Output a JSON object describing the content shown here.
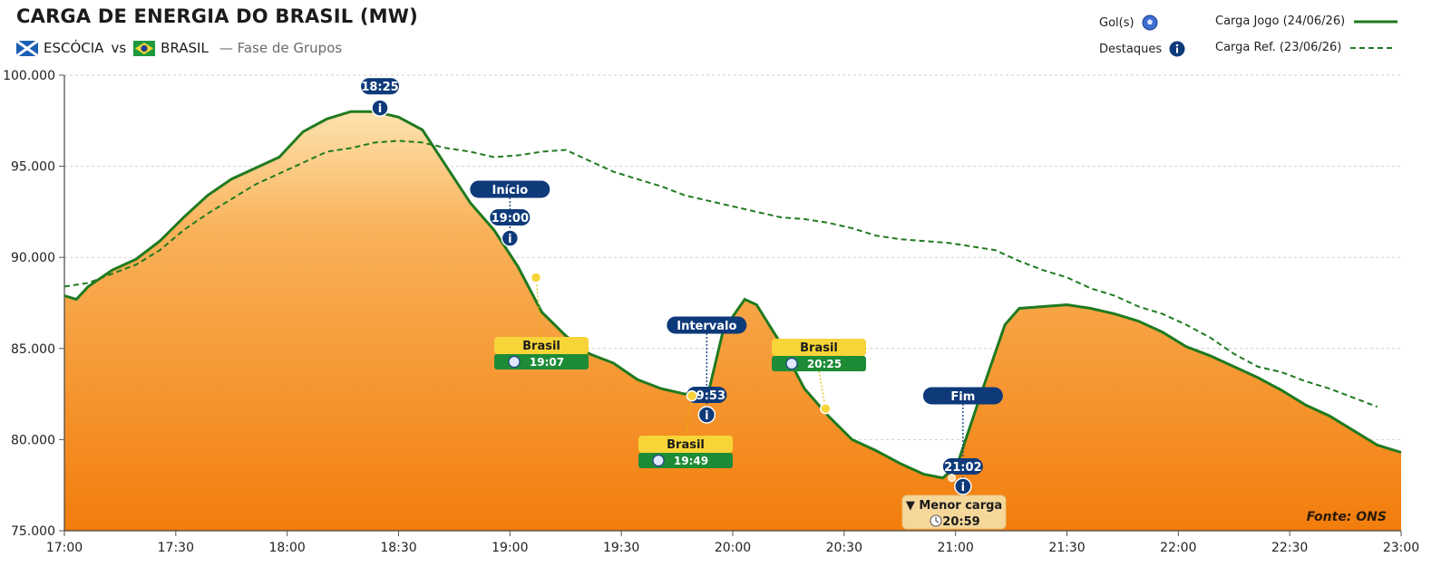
{
  "header": {
    "title": "CARGA DE ENERGIA DO BRASIL (MW)",
    "team_a": "ESCÓCIA",
    "vs": "vs",
    "team_b": "BRASIL",
    "phase": "— Fase de Grupos"
  },
  "legend": {
    "goals": "Gol(s)",
    "highlights": "Destaques",
    "series_game": "Carga Jogo (24/06/26)",
    "series_ref": "Carga Ref. (23/06/26)"
  },
  "source": "Fonte: ONS",
  "colors": {
    "line_green": "#1f7a1f",
    "fill_top": "#fbd99a",
    "fill_bottom": "#f27d0c",
    "navy": "#0e3a7a",
    "yellow": "#f7d539",
    "green_badge": "#1e8b36"
  },
  "chart_data": {
    "type": "area",
    "title": "CARGA DE ENERGIA DO BRASIL (MW)",
    "xlabel": "",
    "ylabel": "",
    "x_ticks": [
      "17:00",
      "17:30",
      "18:00",
      "18:30",
      "19:00",
      "19:30",
      "20:00",
      "20:30",
      "21:00",
      "21:30",
      "22:00",
      "22:30",
      "23:00"
    ],
    "y_ticks": [
      "75.000",
      "80.000",
      "85.000",
      "90.000",
      "95.000",
      "100.000"
    ],
    "ylim": [
      75000,
      100000
    ],
    "xlim_minutes": [
      0,
      360
    ],
    "grid": "horizontal dashed",
    "legend_position": "top-right",
    "series": [
      {
        "name": "Carga Jogo (24/06/26)",
        "style": "solid",
        "points": [
          [
            0,
            87900
          ],
          [
            5,
            87700
          ],
          [
            10,
            88400
          ],
          [
            20,
            89300
          ],
          [
            30,
            89900
          ],
          [
            40,
            90900
          ],
          [
            50,
            92200
          ],
          [
            60,
            93400
          ],
          [
            70,
            94300
          ],
          [
            80,
            94900
          ],
          [
            90,
            95500
          ],
          [
            100,
            96900
          ],
          [
            110,
            97600
          ],
          [
            120,
            98000
          ],
          [
            130,
            98000
          ],
          [
            140,
            97700
          ],
          [
            150,
            97000
          ],
          [
            160,
            95000
          ],
          [
            170,
            93000
          ],
          [
            180,
            91500
          ],
          [
            190,
            89500
          ],
          [
            200,
            87000
          ],
          [
            210,
            85700
          ],
          [
            220,
            84700
          ],
          [
            230,
            84200
          ],
          [
            240,
            83300
          ],
          [
            250,
            82800
          ],
          [
            260,
            82500
          ],
          [
            270,
            82700
          ],
          [
            276,
            86000
          ],
          [
            285,
            87700
          ],
          [
            290,
            87400
          ],
          [
            300,
            85300
          ],
          [
            310,
            82800
          ],
          [
            320,
            81300
          ],
          [
            330,
            80000
          ],
          [
            340,
            79400
          ],
          [
            350,
            78700
          ],
          [
            360,
            78100
          ],
          [
            368,
            77900
          ],
          [
            374,
            78600
          ],
          [
            384,
            82500
          ],
          [
            394,
            86300
          ],
          [
            400,
            87200
          ],
          [
            410,
            87300
          ],
          [
            420,
            87400
          ],
          [
            430,
            87200
          ],
          [
            440,
            86900
          ],
          [
            450,
            86500
          ],
          [
            460,
            85900
          ],
          [
            470,
            85100
          ],
          [
            480,
            84600
          ],
          [
            490,
            84000
          ],
          [
            500,
            83400
          ],
          [
            510,
            82700
          ],
          [
            520,
            81900
          ],
          [
            530,
            81300
          ],
          [
            540,
            80500
          ],
          [
            550,
            79700
          ],
          [
            560,
            79300
          ]
        ]
      },
      {
        "name": "Carga Ref. (23/06/26)",
        "style": "dashed",
        "points": [
          [
            0,
            88400
          ],
          [
            10,
            88600
          ],
          [
            20,
            89100
          ],
          [
            30,
            89600
          ],
          [
            40,
            90400
          ],
          [
            50,
            91500
          ],
          [
            60,
            92400
          ],
          [
            70,
            93200
          ],
          [
            80,
            94000
          ],
          [
            90,
            94600
          ],
          [
            100,
            95200
          ],
          [
            110,
            95800
          ],
          [
            120,
            96000
          ],
          [
            130,
            96300
          ],
          [
            140,
            96400
          ],
          [
            150,
            96300
          ],
          [
            160,
            96000
          ],
          [
            170,
            95800
          ],
          [
            180,
            95500
          ],
          [
            190,
            95600
          ],
          [
            200,
            95800
          ],
          [
            210,
            95900
          ],
          [
            220,
            95300
          ],
          [
            230,
            94700
          ],
          [
            240,
            94300
          ],
          [
            250,
            93900
          ],
          [
            260,
            93400
          ],
          [
            270,
            93100
          ],
          [
            280,
            92800
          ],
          [
            290,
            92500
          ],
          [
            300,
            92200
          ],
          [
            310,
            92100
          ],
          [
            320,
            91900
          ],
          [
            330,
            91600
          ],
          [
            340,
            91200
          ],
          [
            350,
            91000
          ],
          [
            360,
            90900
          ],
          [
            370,
            90800
          ],
          [
            380,
            90600
          ],
          [
            390,
            90400
          ],
          [
            400,
            89800
          ],
          [
            410,
            89300
          ],
          [
            420,
            88900
          ],
          [
            430,
            88300
          ],
          [
            440,
            87900
          ],
          [
            450,
            87300
          ],
          [
            460,
            86900
          ],
          [
            470,
            86300
          ],
          [
            480,
            85600
          ],
          [
            490,
            84700
          ],
          [
            500,
            84000
          ],
          [
            510,
            83700
          ],
          [
            520,
            83200
          ],
          [
            530,
            82800
          ],
          [
            540,
            82300
          ],
          [
            550,
            81800
          ]
        ]
      }
    ],
    "annotations": [
      {
        "kind": "info",
        "time": "18:25",
        "minute": 85,
        "value": 98200,
        "label": ""
      },
      {
        "kind": "info",
        "time": "19:00",
        "minute": 120,
        "value": 91300,
        "label": "Início"
      },
      {
        "kind": "info",
        "time": "19:53",
        "minute": 173,
        "value": 82100,
        "label": "Intervalo"
      },
      {
        "kind": "info",
        "time": "21:02",
        "minute": 242,
        "value": 78200,
        "label": "Fim"
      },
      {
        "kind": "goal",
        "team": "Brasil",
        "time": "19:07",
        "minute": 127,
        "value": 88900
      },
      {
        "kind": "goal",
        "team": "Brasil",
        "time": "19:49",
        "minute": 169,
        "value": 82400
      },
      {
        "kind": "goal",
        "team": "Brasil",
        "time": "20:25",
        "minute": 205,
        "value": 81700
      },
      {
        "kind": "min",
        "label": "▼ Menor carga",
        "time": "20:59",
        "minute": 239,
        "value": 77900
      }
    ]
  }
}
